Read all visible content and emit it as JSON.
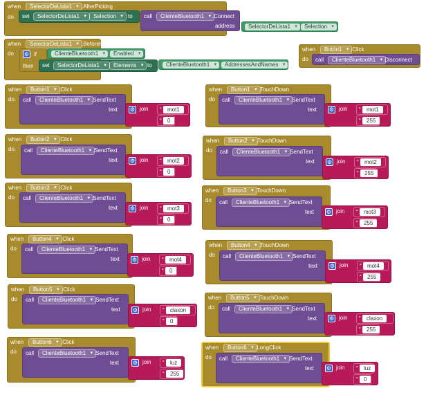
{
  "keywords": {
    "when": "when",
    "do": "do",
    "set": "set",
    "to": "to",
    "call": "call",
    "if": "if",
    "then": "then",
    "address": "address",
    "text": "text",
    "join": "join"
  },
  "components": {
    "selector": "SelectorDeLista1",
    "bluetooth": "ClienteBluetooth1",
    "boton1": "Botón1"
  },
  "events": {
    "after_picking": ".AfterPicking",
    "before_picking": ".BeforePicking",
    "click": ".Click",
    "touch_down": ".TouchDown",
    "long_click": ".LongClick"
  },
  "methods": {
    "connect": ".Connect",
    "disconnect": ".Disconnect",
    "send_text": ".SendText"
  },
  "properties": {
    "selection": "Selection",
    "enabled": "Enabled",
    "elements": "Elements",
    "addresses": "AddressesAndNames"
  },
  "buttons": [
    "Button1",
    "Button2",
    "Button3",
    "Button4",
    "Button5",
    "Button6"
  ],
  "strings": {
    "mot1": "mot1",
    "mot2": "mot2",
    "mot3": "mot3",
    "mot4": "mot4",
    "claxon": "claxon",
    "luz": "luz",
    "zero": "0",
    "full": "255"
  },
  "colors": {
    "event": "#a88b2d",
    "call": "#6e4d92",
    "set": "#2d7151",
    "text": "#b71a58",
    "selected_outline": "#f3cb39"
  }
}
